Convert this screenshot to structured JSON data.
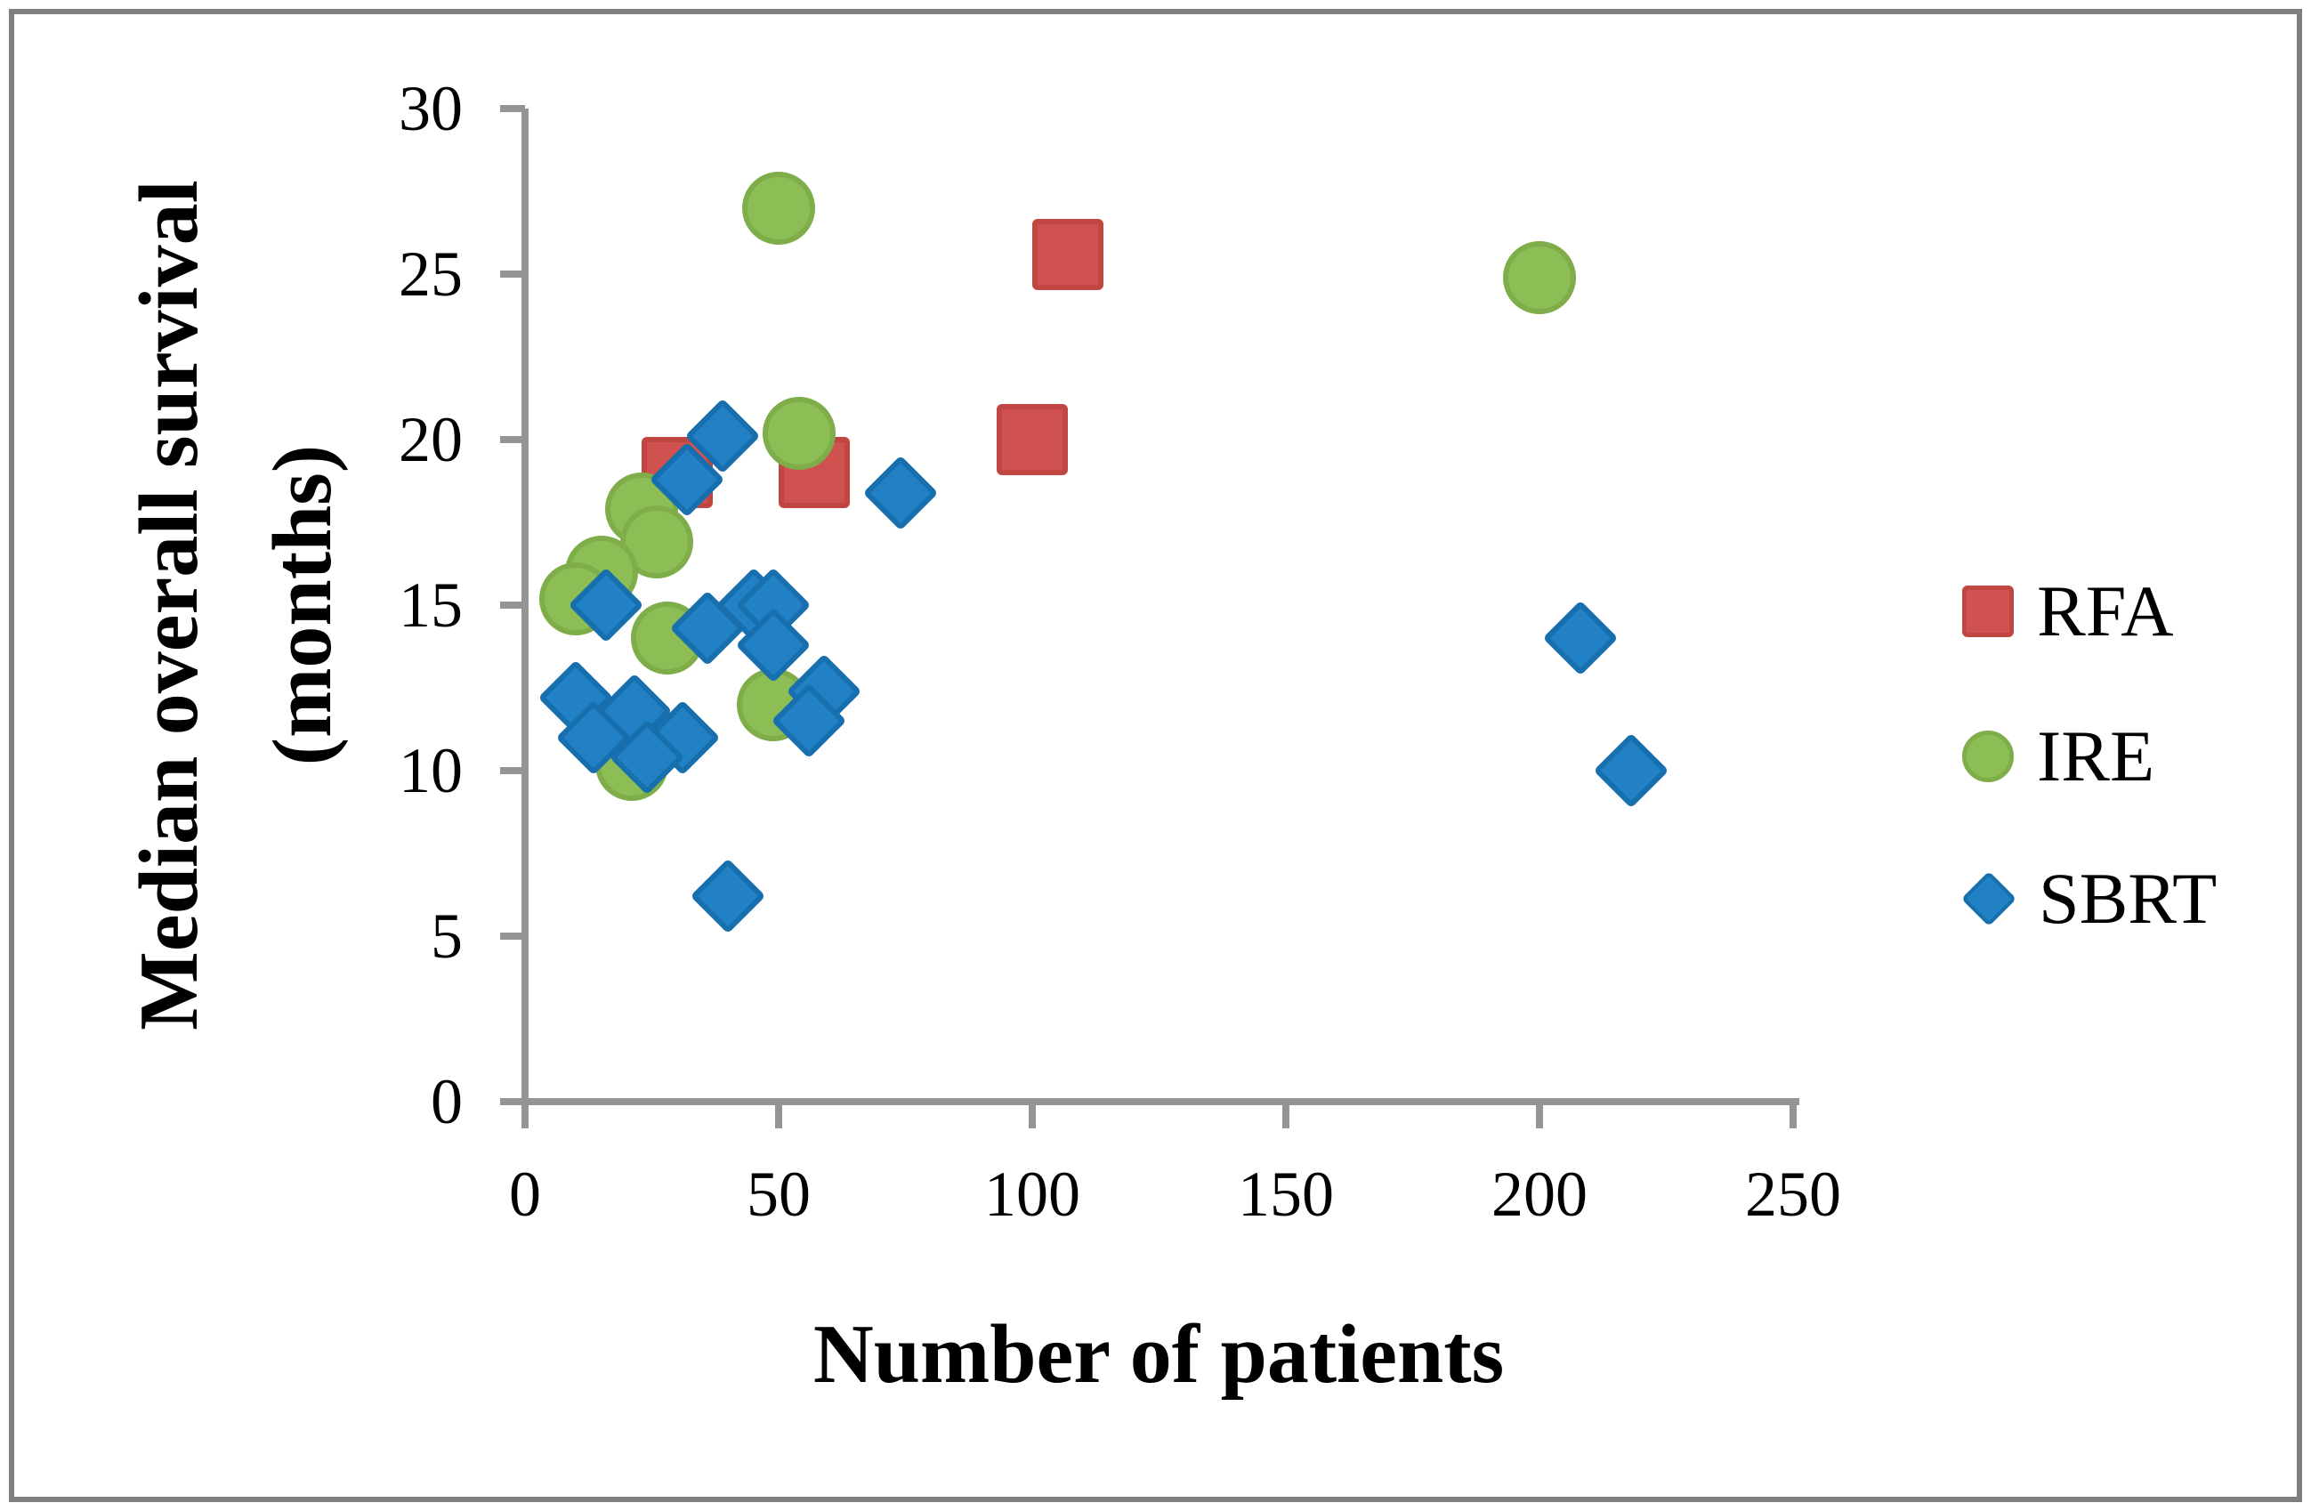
{
  "figure": {
    "border_color": "#7f7f7f",
    "axis_color": "#949494",
    "background": "#ffffff"
  },
  "x_axis": {
    "title": "Number of patients",
    "ticks": [
      0,
      50,
      100,
      150,
      200,
      250
    ],
    "min": 0,
    "max": 250
  },
  "y_axis": {
    "title_line1": "Median overall survival",
    "title_line2": "(months)",
    "ticks": [
      0,
      5,
      10,
      15,
      20,
      25,
      30
    ],
    "min": 0,
    "max": 30
  },
  "legend": {
    "items": [
      {
        "label": "RFA",
        "marker": "square",
        "color": "#d05250"
      },
      {
        "label": "IRE",
        "marker": "circle",
        "color": "#8dbe56"
      },
      {
        "label": "SBRT",
        "marker": "diamond",
        "color": "#2181c4"
      }
    ]
  },
  "chart_data": {
    "type": "scatter",
    "title": "",
    "xlabel": "Number of patients",
    "ylabel": "Median overall survival (months)",
    "xlim": [
      0,
      250
    ],
    "ylim": [
      0,
      30
    ],
    "grid": false,
    "legend_position": "right",
    "series": [
      {
        "name": "RFA",
        "marker": "square",
        "color": "#d05250",
        "border": "#c14541",
        "points": [
          [
            107,
            25.6
          ],
          [
            100,
            20.0
          ],
          [
            30,
            19.0
          ],
          [
            57,
            19.0
          ]
        ]
      },
      {
        "name": "IRE",
        "marker": "circle",
        "color": "#8dbe56",
        "border": "#7ead49",
        "points": [
          [
            50,
            27.0
          ],
          [
            200,
            24.9
          ],
          [
            54,
            20.2
          ],
          [
            23,
            17.9
          ],
          [
            26,
            16.9
          ],
          [
            15,
            16.0
          ],
          [
            10,
            15.2
          ],
          [
            28,
            14.0
          ],
          [
            49,
            12.0
          ],
          [
            21,
            10.2
          ]
        ]
      },
      {
        "name": "SBRT",
        "marker": "diamond",
        "color": "#2181c4",
        "border": "#176fae",
        "points": [
          [
            39,
            20.1
          ],
          [
            32,
            18.8
          ],
          [
            74,
            18.4
          ],
          [
            16,
            15.0
          ],
          [
            45,
            15.0
          ],
          [
            49,
            15.0
          ],
          [
            36,
            14.3
          ],
          [
            49,
            13.8
          ],
          [
            59,
            12.4
          ],
          [
            10,
            12.2
          ],
          [
            21.5,
            11.8
          ],
          [
            56,
            11.5
          ],
          [
            13.5,
            11.0
          ],
          [
            31,
            11.0
          ],
          [
            24,
            10.4
          ],
          [
            40,
            6.2
          ],
          [
            208,
            14.0
          ],
          [
            218,
            10.0
          ]
        ]
      }
    ]
  }
}
